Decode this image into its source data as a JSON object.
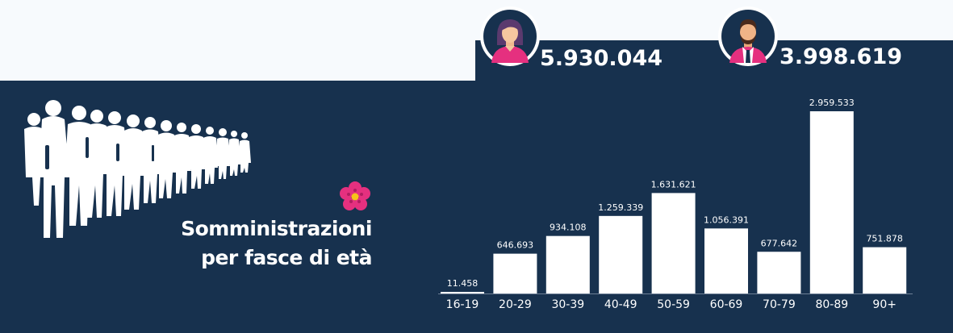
{
  "colors": {
    "panel": "#17314e",
    "page": "#f7fafd",
    "bar": "#ffffff",
    "text": "#ffffff",
    "accent_pink": "#e5307f"
  },
  "icons": [
    "female-avatar-icon",
    "male-avatar-icon",
    "crowd-silhouette-icon",
    "primula-flower-icon"
  ],
  "gender": {
    "female": {
      "icon": "female-avatar-icon",
      "count": "5.930.044"
    },
    "male": {
      "icon": "male-avatar-icon",
      "count": "3.998.619"
    }
  },
  "title": {
    "line1": "Somministrazioni",
    "line2": "per fasce di età"
  },
  "chart_data": {
    "type": "bar",
    "categories": [
      "16-19",
      "20-29",
      "30-39",
      "40-49",
      "50-59",
      "60-69",
      "70-79",
      "80-89",
      "90+"
    ],
    "values": [
      11458,
      646693,
      934108,
      1259339,
      1631621,
      1056391,
      677642,
      2959533,
      751878
    ],
    "labels": [
      "11.458",
      "646.693",
      "934.108",
      "1.259.339",
      "1.631.621",
      "1.056.391",
      "677.642",
      "2.959.533",
      "751.878"
    ],
    "title": "",
    "xlabel": "",
    "ylabel": "",
    "ylim": [
      0,
      2959533
    ],
    "grid": false
  }
}
